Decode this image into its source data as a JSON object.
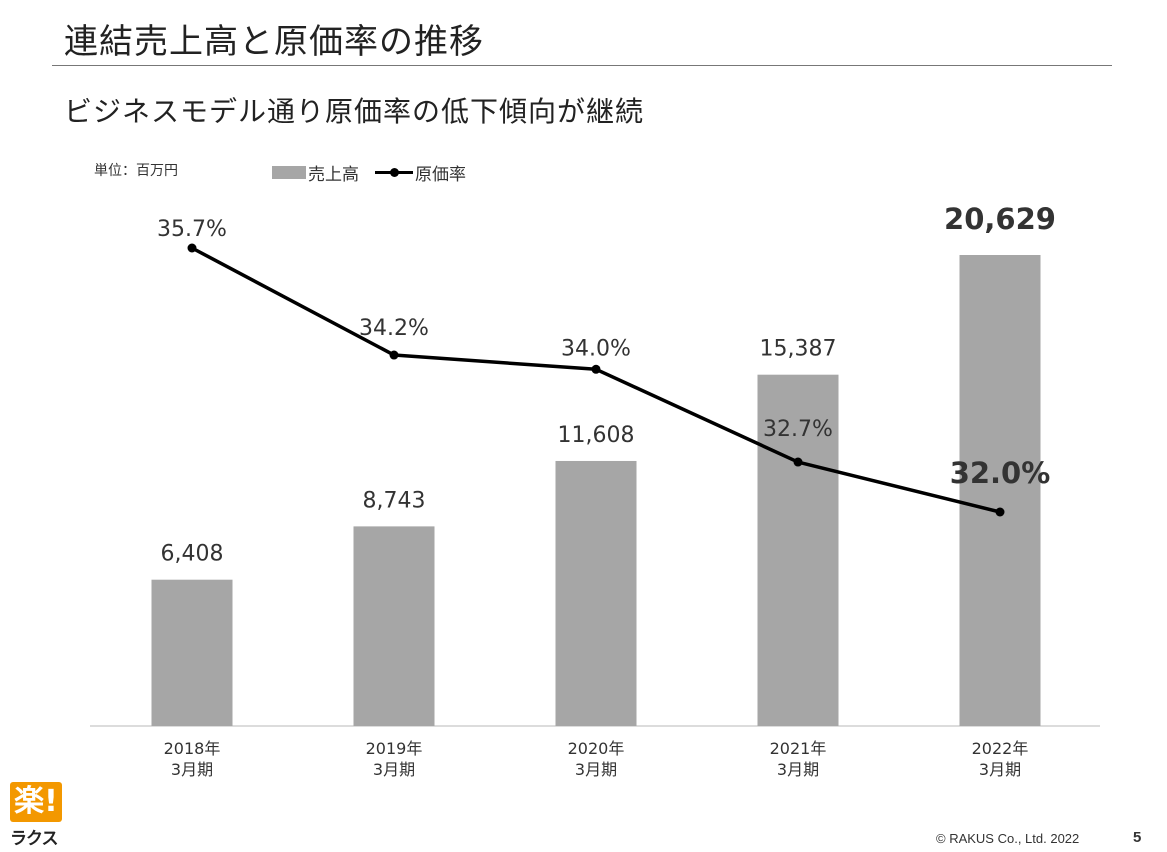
{
  "slide": {
    "title": "連結売上高と原価率の推移",
    "subtitle": "ビジネスモデル通り原価率の低下傾向が継続",
    "unit_label": "単位：百万円",
    "page_number": "5",
    "copyright": "© RAKUS Co., Ltd. 2022"
  },
  "logo": {
    "top_text": "楽!",
    "bottom_text": "ラクス",
    "color": "#f39800"
  },
  "legend": {
    "bar_label": "売上高",
    "line_label": "原価率"
  },
  "chart_data": {
    "type": "bar",
    "categories": [
      [
        "2018年",
        "3月期"
      ],
      [
        "2019年",
        "3月期"
      ],
      [
        "2020年",
        "3月期"
      ],
      [
        "2021年",
        "3月期"
      ],
      [
        "2022年",
        "3月期"
      ]
    ],
    "series": [
      {
        "name": "売上高",
        "type": "bar",
        "values": [
          6408,
          8743,
          11608,
          15387,
          20629
        ],
        "labels": [
          "6,408",
          "8,743",
          "11,608",
          "15,387",
          "20,629"
        ],
        "color": "#a6a6a6",
        "highlight_index": 4
      },
      {
        "name": "原価率",
        "type": "line",
        "values": [
          35.7,
          34.2,
          34.0,
          32.7,
          32.0
        ],
        "labels": [
          "35.7%",
          "34.2%",
          "34.0%",
          "32.7%",
          "32.0%"
        ],
        "color": "#000000",
        "highlight_index": 4
      }
    ],
    "bar_axis_range": [
      0,
      20629
    ],
    "line_axis_range": [
      28.7,
      36.5
    ],
    "grid": false,
    "legend_position": "top-left"
  }
}
